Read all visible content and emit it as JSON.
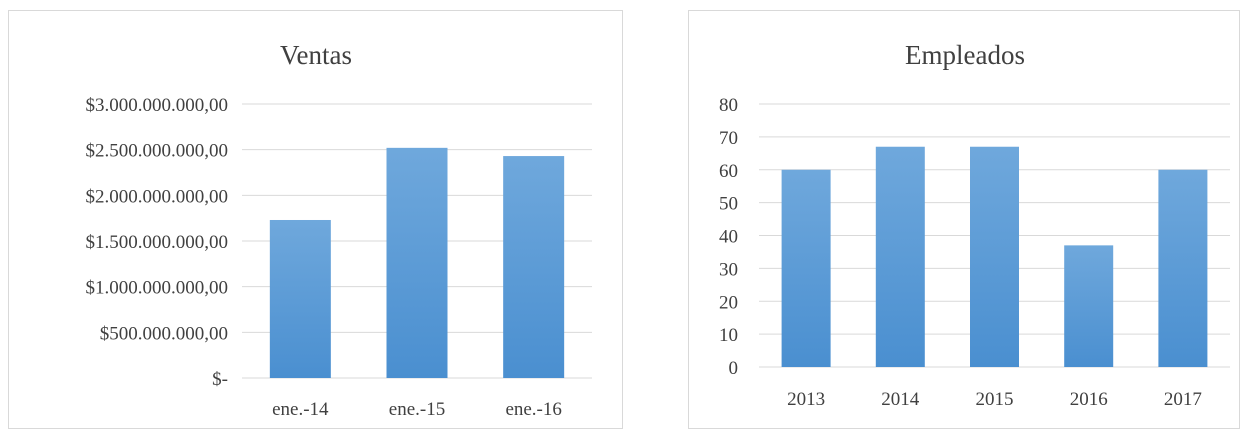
{
  "chart_data": [
    {
      "type": "bar",
      "title": "Ventas",
      "xlabel": "",
      "ylabel": "",
      "categories": [
        "ene.-14",
        "ene.-15",
        "ene.-16"
      ],
      "values": [
        1730000000,
        2520000000,
        2430000000
      ],
      "ylim": [
        0,
        3000000000
      ],
      "yticks": [
        0,
        500000000,
        1000000000,
        1500000000,
        2000000000,
        2500000000,
        3000000000
      ],
      "ytick_labels": [
        "$-",
        "$500.000.000,00",
        "$1.000.000.000,00",
        "$1.500.000.000,00",
        "$2.000.000.000,00",
        "$2.500.000.000,00",
        "$3.000.000.000,00"
      ],
      "grid": true,
      "legend": "none",
      "color": "#5b9bd5"
    },
    {
      "type": "bar",
      "title": "Empleados",
      "xlabel": "",
      "ylabel": "",
      "categories": [
        "2013",
        "2014",
        "2015",
        "2016",
        "2017"
      ],
      "values": [
        60,
        67,
        67,
        37,
        60
      ],
      "ylim": [
        0,
        80
      ],
      "yticks": [
        0,
        10,
        20,
        30,
        40,
        50,
        60,
        70,
        80
      ],
      "ytick_labels": [
        "0",
        "10",
        "20",
        "30",
        "40",
        "50",
        "60",
        "70",
        "80"
      ],
      "grid": true,
      "legend": "none",
      "color": "#5b9bd5"
    }
  ]
}
